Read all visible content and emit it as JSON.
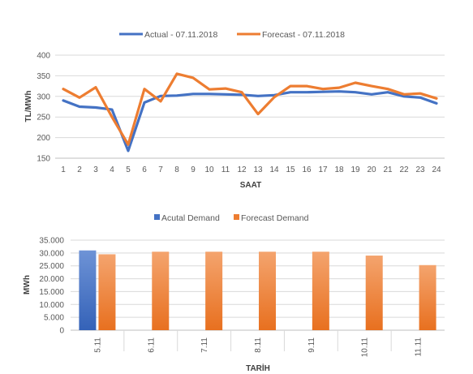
{
  "colors": {
    "actual": "#4472C4",
    "forecast": "#ED7D31",
    "grid": "#D9D9D9",
    "axis": "#BFBFBF"
  },
  "chart_data": [
    {
      "type": "line",
      "title": "",
      "xlabel": "SAAT",
      "ylabel": "TL/MWh",
      "ylim": [
        150,
        400
      ],
      "yticks": [
        "150",
        "200",
        "250",
        "300",
        "350",
        "400"
      ],
      "grid": true,
      "legend_position": "top",
      "categories": [
        "1",
        "2",
        "3",
        "4",
        "5",
        "6",
        "7",
        "8",
        "9",
        "10",
        "11",
        "12",
        "13",
        "14",
        "15",
        "16",
        "17",
        "18",
        "19",
        "20",
        "21",
        "22",
        "23",
        "24"
      ],
      "series": [
        {
          "name": "Actual - 07.11.2018",
          "color": "#4472C4",
          "values": [
            290,
            275,
            273,
            268,
            168,
            285,
            301,
            302,
            306,
            306,
            305,
            304,
            301,
            303,
            310,
            310,
            311,
            312,
            310,
            305,
            310,
            300,
            297,
            283
          ]
        },
        {
          "name": "Forecast - 07.11.2018",
          "color": "#ED7D31",
          "values": [
            318,
            297,
            322,
            250,
            183,
            318,
            288,
            355,
            345,
            317,
            319,
            310,
            257,
            298,
            325,
            325,
            318,
            321,
            333,
            325,
            318,
            305,
            307,
            295
          ]
        }
      ]
    },
    {
      "type": "bar",
      "title": "",
      "xlabel": "TARİH",
      "ylabel": "MWh",
      "ylim": [
        0,
        35000
      ],
      "yticks": [
        "0",
        "5.000",
        "10.000",
        "15.000",
        "20.000",
        "25.000",
        "30.000",
        "35.000"
      ],
      "grid": true,
      "legend_position": "top",
      "categories": [
        "5.11",
        "6.11",
        "7.11",
        "8.11",
        "9.11",
        "10.11",
        "11.11"
      ],
      "series": [
        {
          "name": "Acutal Demand",
          "color": "#4472C4",
          "values": [
            31000,
            null,
            null,
            null,
            null,
            null,
            null
          ]
        },
        {
          "name": "Forecast Demand",
          "color": "#ED7D31",
          "values": [
            29500,
            30500,
            30500,
            30500,
            30500,
            29000,
            25300
          ]
        }
      ]
    }
  ]
}
